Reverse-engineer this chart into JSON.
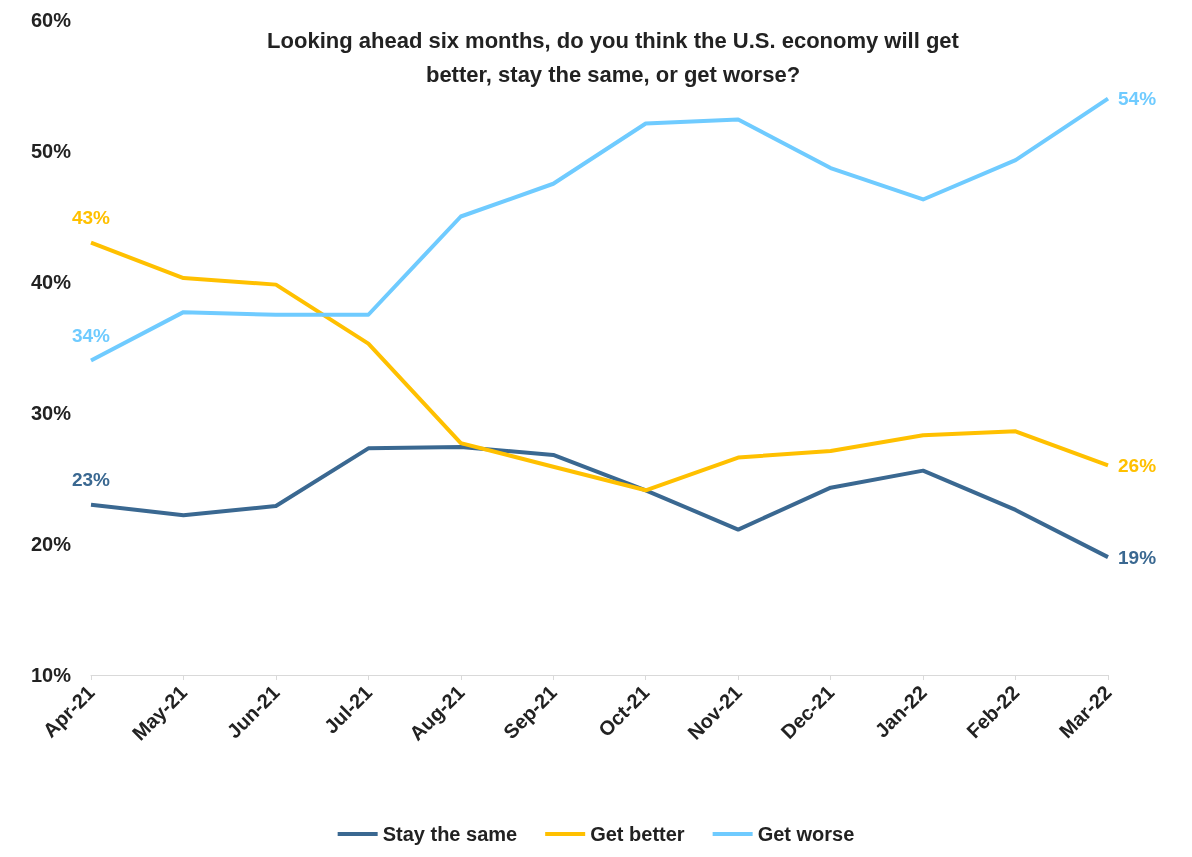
{
  "chart_data": {
    "type": "line",
    "title": "Looking ahead six months, do you think the U.S. economy will get\nbetter, stay the same, or get worse?",
    "categories": [
      "Apr-21",
      "May-21",
      "Jun-21",
      "Jul-21",
      "Aug-21",
      "Sep-21",
      "Oct-21",
      "Nov-21",
      "Dec-21",
      "Jan-22",
      "Feb-22",
      "Mar-22"
    ],
    "series": [
      {
        "name": "Stay the same",
        "color": "#3a6891",
        "values": [
          23,
          22.2,
          22.9,
          27.3,
          27.4,
          26.8,
          24.1,
          21.1,
          24.3,
          25.6,
          22.6,
          19
        ],
        "value_labels": [
          "23%",
          null,
          null,
          null,
          null,
          null,
          null,
          null,
          null,
          null,
          null,
          "19%"
        ]
      },
      {
        "name": "Get better",
        "color": "#ffc000",
        "values": [
          43,
          40.3,
          39.8,
          35.3,
          27.7,
          25.9,
          24.1,
          26.6,
          27.1,
          28.3,
          28.6,
          26
        ],
        "value_labels": [
          "43%",
          null,
          null,
          null,
          null,
          null,
          null,
          null,
          null,
          null,
          null,
          "26%"
        ]
      },
      {
        "name": "Get worse",
        "color": "#6fcbff",
        "values": [
          34,
          37.7,
          37.5,
          37.5,
          45.0,
          47.5,
          52.1,
          52.4,
          48.7,
          46.3,
          49.3,
          54
        ],
        "value_labels": [
          "34%",
          null,
          null,
          null,
          null,
          null,
          null,
          null,
          null,
          null,
          null,
          "54%"
        ]
      }
    ],
    "ylim": [
      10,
      60
    ],
    "yticks": [
      {
        "value": 10,
        "label": "10%"
      },
      {
        "value": 20,
        "label": "20%"
      },
      {
        "value": 30,
        "label": "30%"
      },
      {
        "value": 40,
        "label": "40%"
      },
      {
        "value": 50,
        "label": "50%"
      },
      {
        "value": 60,
        "label": "60%"
      }
    ],
    "grid": false,
    "legend": "bottom",
    "marker": "none",
    "line_style": "solid"
  }
}
